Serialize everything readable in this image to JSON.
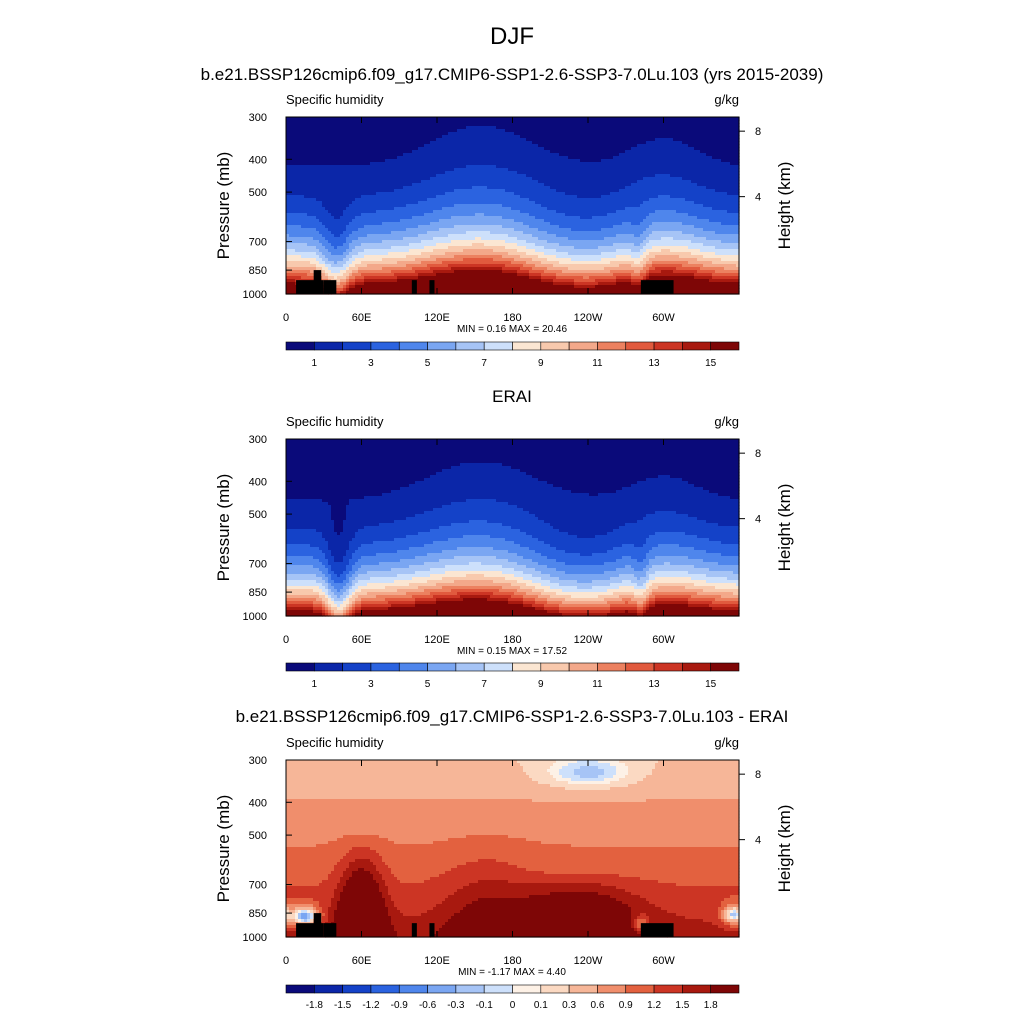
{
  "figure_title": "DJF",
  "palettes": {
    "sequential": [
      "#0a0a7a",
      "#0b26a8",
      "#1442c8",
      "#2b63e0",
      "#4f86ec",
      "#7aa6f2",
      "#a6c4f6",
      "#cde0fb",
      "#fbe6d2",
      "#f8c9ad",
      "#f3a88a",
      "#ec8160",
      "#e15a3e",
      "#cc3524",
      "#a8190f",
      "#7e0606"
    ],
    "diverging": [
      "#0a0a7a",
      "#0b26a8",
      "#1442c8",
      "#2b63e0",
      "#4f86ec",
      "#7aa6f2",
      "#a6c4f6",
      "#cde0fb",
      "#fdf1e6",
      "#fbd9c2",
      "#f6b698",
      "#f08e6c",
      "#e3613f",
      "#cc3524",
      "#a8190f",
      "#7e0606"
    ]
  },
  "chart_data": [
    {
      "type": "contour",
      "title": "b.e21.BSSP126cmip6.f09_g17.CMIP6-SSP1-2.6-SSP3-7.0Lu.103 (yrs 2015-2039)",
      "left_label": "Specific humidity",
      "right_label": "g/kg",
      "ylabel": "Pressure (mb)",
      "ylabel_right": "Height (km)",
      "x_ticks": [
        "0",
        "60E",
        "120E",
        "180",
        "120W",
        "60W"
      ],
      "x_tick_values": [
        0,
        60,
        120,
        180,
        240,
        300
      ],
      "xlim": [
        0,
        360
      ],
      "y_ticks": [
        "300",
        "400",
        "500",
        "700",
        "850",
        "1000"
      ],
      "y_tick_values": [
        300,
        400,
        500,
        700,
        850,
        1000
      ],
      "ylim": [
        1000,
        300
      ],
      "y_scale": "log",
      "right_ticks": [
        "8",
        "4"
      ],
      "right_tick_values": [
        8,
        4
      ],
      "stats": "MIN =   0.16  MAX =  20.46",
      "levels": [
        "1",
        "3",
        "5",
        "7",
        "9",
        "11",
        "13",
        "15"
      ],
      "palette": "sequential",
      "terrain": true,
      "field": "model"
    },
    {
      "type": "contour",
      "title": "ERAI",
      "left_label": "Specific humidity",
      "right_label": "g/kg",
      "ylabel": "Pressure (mb)",
      "ylabel_right": "Height (km)",
      "x_ticks": [
        "0",
        "60E",
        "120E",
        "180",
        "120W",
        "60W"
      ],
      "x_tick_values": [
        0,
        60,
        120,
        180,
        240,
        300
      ],
      "xlim": [
        0,
        360
      ],
      "y_ticks": [
        "300",
        "400",
        "500",
        "700",
        "850",
        "1000"
      ],
      "y_tick_values": [
        300,
        400,
        500,
        700,
        850,
        1000
      ],
      "ylim": [
        1000,
        300
      ],
      "y_scale": "log",
      "right_ticks": [
        "8",
        "4"
      ],
      "right_tick_values": [
        8,
        4
      ],
      "stats": "MIN =   0.15  MAX =  17.52",
      "levels": [
        "1",
        "3",
        "5",
        "7",
        "9",
        "11",
        "13",
        "15"
      ],
      "palette": "sequential",
      "terrain": false,
      "field": "obs"
    },
    {
      "type": "contour",
      "title": "b.e21.BSSP126cmip6.f09_g17.CMIP6-SSP1-2.6-SSP3-7.0Lu.103 - ERAI",
      "left_label": "Specific humidity",
      "right_label": "g/kg",
      "ylabel": "Pressure (mb)",
      "ylabel_right": "Height (km)",
      "x_ticks": [
        "0",
        "60E",
        "120E",
        "180",
        "120W",
        "60W"
      ],
      "x_tick_values": [
        0,
        60,
        120,
        180,
        240,
        300
      ],
      "xlim": [
        0,
        360
      ],
      "y_ticks": [
        "300",
        "400",
        "500",
        "700",
        "850",
        "1000"
      ],
      "y_tick_values": [
        300,
        400,
        500,
        700,
        850,
        1000
      ],
      "ylim": [
        1000,
        300
      ],
      "y_scale": "log",
      "right_ticks": [
        "8",
        "4"
      ],
      "right_tick_values": [
        8,
        4
      ],
      "stats": "MIN =  -1.17  MAX =   4.40",
      "levels": [
        "-1.8",
        "-1.5",
        "-1.2",
        "-0.9",
        "-0.6",
        "-0.3",
        "-0.1",
        "0",
        "0.1",
        "0.3",
        "0.6",
        "0.9",
        "1.2",
        "1.5",
        "1.8"
      ],
      "palette": "diverging",
      "terrain": true,
      "field": "diff"
    }
  ]
}
